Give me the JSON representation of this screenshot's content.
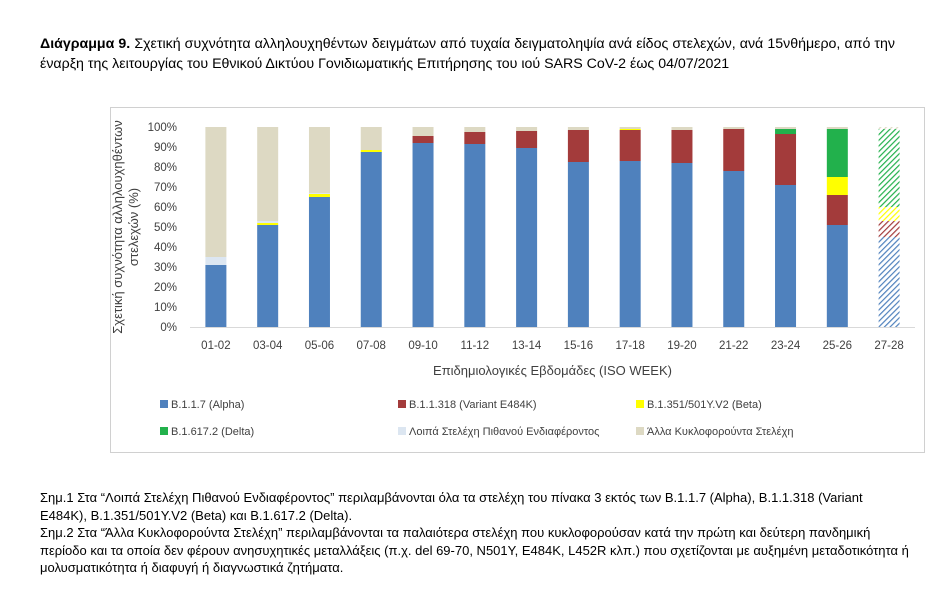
{
  "caption": {
    "label": "Διάγραμμα 9.",
    "text": " Σχετική συχνότητα αλληλουχηθέντων δειγμάτων από τυχαία δειγματοληψία ανά είδος στελεχών, ανά 15νθήμερο, από την έναρξη της λειτουργίας του Εθνικού Δικτύου Γονιδιωματικής Επιτήρησης του ιού SARS CoV-2 έως 04/07/2021"
  },
  "chart_data": {
    "type": "bar",
    "stacked": true,
    "xlabel": "Επιδημιολογικές Εβδομάδες (ISO WEEK)",
    "ylabel_line1": "Σχετική συχνότητα αλληλουχηθέντων",
    "ylabel_line2": "στελεχών (%)",
    "ylim": [
      0,
      100
    ],
    "yticks": [
      "0%",
      "10%",
      "20%",
      "30%",
      "40%",
      "50%",
      "60%",
      "70%",
      "80%",
      "90%",
      "100%"
    ],
    "categories": [
      "01-02",
      "03-04",
      "05-06",
      "07-08",
      "09-10",
      "11-12",
      "13-14",
      "15-16",
      "17-18",
      "19-20",
      "21-22",
      "23-24",
      "25-26",
      "27-28"
    ],
    "hatched_categories": [
      "27-28"
    ],
    "series": [
      {
        "name": "B.1.1.7 (Alpha)",
        "color": "#4f81bd",
        "values": [
          31,
          51,
          65,
          87.5,
          92,
          91.5,
          89.5,
          82.5,
          83,
          82,
          78,
          71,
          51,
          45
        ]
      },
      {
        "name": "B.1.1.318 (Variant E484K)",
        "color": "#a33b3b",
        "values": [
          0,
          0,
          0,
          0,
          3.5,
          6,
          8.5,
          16,
          15.5,
          16.5,
          21,
          25.5,
          15,
          8
        ]
      },
      {
        "name": "B.1.351/501Y.V2 (Beta)",
        "color": "#ffff00",
        "values": [
          0,
          1,
          1.5,
          1,
          0,
          0,
          0,
          0,
          0.5,
          0,
          0,
          0,
          9,
          7
        ]
      },
      {
        "name": "B.1.617.2 (Delta)",
        "color": "#22b14c",
        "values": [
          0,
          0,
          0,
          0,
          0,
          0,
          0,
          0,
          0,
          0,
          0,
          2.5,
          24,
          39
        ]
      },
      {
        "name": "Λοιπά Στελέχη Πιθανού Ενδιαφέροντος",
        "color": "#dce6f1",
        "values": [
          4,
          1,
          0.5,
          0,
          0,
          0,
          0,
          0,
          0,
          0,
          0,
          0,
          0,
          0
        ]
      },
      {
        "name": "Άλλα Κυκλοφορούντα Στελέχη",
        "color": "#ddd9c3",
        "values": [
          65,
          47,
          33,
          11.5,
          4.5,
          2.5,
          2,
          1.5,
          1,
          1.5,
          1,
          1,
          1,
          1
        ]
      }
    ],
    "legend_position": "bottom",
    "grid": false
  },
  "notes": [
    "Σημ.1 Στα “Λοιπά Στελέχη Πιθανού Ενδιαφέροντος” περιλαμβάνονται όλα τα στελέχη του πίνακα 3 εκτός των B.1.1.7 (Alpha), B.1.1.318 (Variant E484K), B.1.351/501Y.V2 (Beta) και B.1.617.2 (Delta).",
    "Σημ.2 Στα “Άλλα Κυκλοφορούντα Στελέχη” περιλαμβάνονται τα παλαιότερα στελέχη που κυκλοφορούσαν κατά την πρώτη και δεύτερη πανδημική περίοδο και τα οποία δεν φέρουν ανησυχητικές μεταλλάξεις (π.χ. del 69-70, N501Y, E484K, L452R κλπ.) που σχετίζονται με αυξημένη μεταδοτικότητα ή μολυσματικότητα ή διαφυγή ή διαγνωστικά ζητήματα."
  ]
}
